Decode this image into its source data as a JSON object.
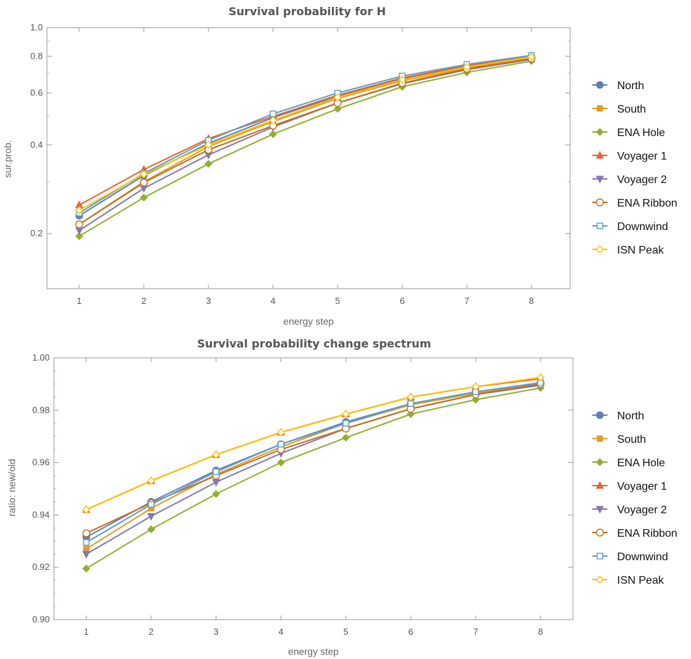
{
  "chart_data": [
    {
      "type": "line",
      "title": "Survival probability for H",
      "xlabel": "energy step",
      "ylabel": "sur.prob.",
      "y_scale": "log",
      "xlim": [
        0.5,
        8.6
      ],
      "ylim": [
        0.13,
        1.0
      ],
      "x": [
        1,
        2,
        3,
        4,
        5,
        6,
        7,
        8
      ],
      "x_ticks": [
        "1",
        "2",
        "3",
        "4",
        "5",
        "6",
        "7",
        "8"
      ],
      "y_ticks": [
        0.2,
        0.4,
        0.6,
        0.8,
        1.0
      ],
      "y_tick_labels": [
        "0.2",
        "0.4",
        "0.6",
        "0.8",
        "1.0"
      ],
      "grid": false,
      "legend_position": "right",
      "series": [
        {
          "name": "North",
          "color": "#5e81b5",
          "marker": "circle-filled",
          "values": [
            0.23,
            0.315,
            0.405,
            0.495,
            0.585,
            0.67,
            0.74,
            0.795
          ]
        },
        {
          "name": "South",
          "color": "#e19c24",
          "marker": "square-filled",
          "values": [
            0.215,
            0.3,
            0.395,
            0.48,
            0.575,
            0.66,
            0.73,
            0.785
          ]
        },
        {
          "name": "ENA Hole",
          "color": "#8fb032",
          "marker": "diamond-filled",
          "values": [
            0.196,
            0.265,
            0.345,
            0.435,
            0.53,
            0.63,
            0.705,
            0.77
          ]
        },
        {
          "name": "Voyager 1",
          "color": "#eb6235",
          "marker": "triangle-up-filled",
          "values": [
            0.25,
            0.33,
            0.42,
            0.5,
            0.59,
            0.675,
            0.745,
            0.8
          ]
        },
        {
          "name": "Voyager 2",
          "color": "#8778b3",
          "marker": "triangle-down-filled",
          "values": [
            0.205,
            0.285,
            0.37,
            0.46,
            0.555,
            0.645,
            0.72,
            0.78
          ]
        },
        {
          "name": "ENA Ribbon",
          "color": "#c56e1a",
          "marker": "circle-open",
          "values": [
            0.215,
            0.298,
            0.385,
            0.465,
            0.555,
            0.648,
            0.725,
            0.785
          ]
        },
        {
          "name": "Downwind",
          "color": "#5d9ec7",
          "marker": "square-open",
          "values": [
            0.235,
            0.32,
            0.415,
            0.51,
            0.6,
            0.685,
            0.75,
            0.805
          ]
        },
        {
          "name": "ISN Peak",
          "color": "#ffbf00",
          "marker": "diamond-open",
          "values": [
            0.24,
            0.318,
            0.4,
            0.485,
            0.58,
            0.665,
            0.735,
            0.795
          ]
        }
      ]
    },
    {
      "type": "line",
      "title": "Survival probability change spectrum",
      "xlabel": "energy step",
      "ylabel": "ratio: new/old",
      "y_scale": "linear",
      "xlim": [
        0.5,
        8.5
      ],
      "ylim": [
        0.9,
        1.0
      ],
      "x": [
        1,
        2,
        3,
        4,
        5,
        6,
        7,
        8
      ],
      "x_ticks": [
        "1",
        "2",
        "3",
        "4",
        "5",
        "6",
        "7",
        "8"
      ],
      "y_ticks": [
        0.9,
        0.92,
        0.94,
        0.96,
        0.98,
        1.0
      ],
      "y_tick_labels": [
        "0.90",
        "0.92",
        "0.94",
        "0.96",
        "0.98",
        "1.00"
      ],
      "grid": false,
      "legend_position": "right",
      "series": [
        {
          "name": "North",
          "color": "#5e81b5",
          "marker": "circle-filled",
          "values": [
            0.9315,
            0.945,
            0.957,
            0.967,
            0.9755,
            0.9825,
            0.987,
            0.9905
          ]
        },
        {
          "name": "South",
          "color": "#e19c24",
          "marker": "square-filled",
          "values": [
            0.927,
            0.9425,
            0.9555,
            0.966,
            0.975,
            0.982,
            0.9865,
            0.99
          ]
        },
        {
          "name": "ENA Hole",
          "color": "#8fb032",
          "marker": "diamond-filled",
          "values": [
            0.9195,
            0.9345,
            0.948,
            0.96,
            0.9695,
            0.9785,
            0.984,
            0.9885
          ]
        },
        {
          "name": "Voyager 1",
          "color": "#eb6235",
          "marker": "triangle-up-filled",
          "values": [
            0.942,
            0.953,
            0.963,
            0.9715,
            0.9785,
            0.985,
            0.989,
            0.992
          ]
        },
        {
          "name": "Voyager 2",
          "color": "#8778b3",
          "marker": "triangle-down-filled",
          "values": [
            0.925,
            0.9395,
            0.9525,
            0.9635,
            0.973,
            0.9805,
            0.986,
            0.9895
          ]
        },
        {
          "name": "ENA Ribbon",
          "color": "#c56e1a",
          "marker": "circle-open",
          "values": [
            0.933,
            0.9445,
            0.955,
            0.965,
            0.973,
            0.9805,
            0.986,
            0.99
          ]
        },
        {
          "name": "Downwind",
          "color": "#5d9ec7",
          "marker": "square-open",
          "values": [
            0.9295,
            0.944,
            0.9565,
            0.967,
            0.975,
            0.9825,
            0.987,
            0.9905
          ]
        },
        {
          "name": "ISN Peak",
          "color": "#ffbf00",
          "marker": "diamond-open",
          "values": [
            0.942,
            0.953,
            0.963,
            0.9715,
            0.9785,
            0.985,
            0.989,
            0.9925
          ]
        }
      ]
    }
  ]
}
